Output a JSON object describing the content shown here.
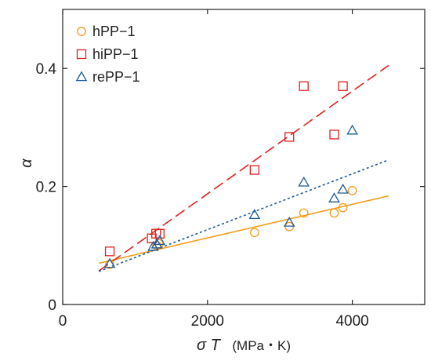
{
  "chart_data": {
    "type": "scatter",
    "xlabel": {
      "symbol": "σ T",
      "unit": "(MPa・K)"
    },
    "ylabel": "α",
    "xlim": [
      0,
      5000
    ],
    "ylim": [
      0,
      0.5
    ],
    "xticks": [
      0,
      2000,
      4000
    ],
    "yticks": [
      0,
      0.2,
      0.4
    ],
    "xtick_labels": [
      "0",
      "2000",
      "4000"
    ],
    "ytick_labels": [
      "0",
      "0.2",
      "0.4"
    ],
    "grid": false,
    "legend": "top-left",
    "series": [
      {
        "name": "hPP−1",
        "marker": "circle",
        "color": "#f39c1a",
        "points": [
          [
            650,
            0.068
          ],
          [
            1300,
            0.1
          ],
          [
            1330,
            0.103
          ],
          [
            2650,
            0.122
          ],
          [
            3130,
            0.132
          ],
          [
            3330,
            0.155
          ],
          [
            3750,
            0.155
          ],
          [
            3870,
            0.164
          ],
          [
            4000,
            0.193
          ]
        ],
        "fit": {
          "style": "solid",
          "x": [
            500,
            4500
          ],
          "y": [
            0.07,
            0.184
          ]
        }
      },
      {
        "name": "hiPP−1",
        "marker": "square",
        "color": "#e02020",
        "points": [
          [
            650,
            0.09
          ],
          [
            1230,
            0.112
          ],
          [
            1290,
            0.12
          ],
          [
            1340,
            0.12
          ],
          [
            2650,
            0.228
          ],
          [
            3130,
            0.284
          ],
          [
            3330,
            0.37
          ],
          [
            3750,
            0.288
          ],
          [
            3870,
            0.37
          ]
        ],
        "fit": {
          "style": "dashed",
          "x": [
            500,
            4500
          ],
          "y": [
            0.057,
            0.405
          ]
        }
      },
      {
        "name": "rePP−1",
        "marker": "triangle",
        "color": "#1f5a9a",
        "points": [
          [
            650,
            0.069
          ],
          [
            1250,
            0.098
          ],
          [
            1300,
            0.102
          ],
          [
            1340,
            0.108
          ],
          [
            2650,
            0.152
          ],
          [
            3130,
            0.139
          ],
          [
            3330,
            0.207
          ],
          [
            3750,
            0.18
          ],
          [
            3870,
            0.195
          ],
          [
            4000,
            0.295
          ]
        ],
        "fit": {
          "style": "dotted",
          "x": [
            500,
            4500
          ],
          "y": [
            0.056,
            0.245
          ]
        }
      }
    ]
  }
}
